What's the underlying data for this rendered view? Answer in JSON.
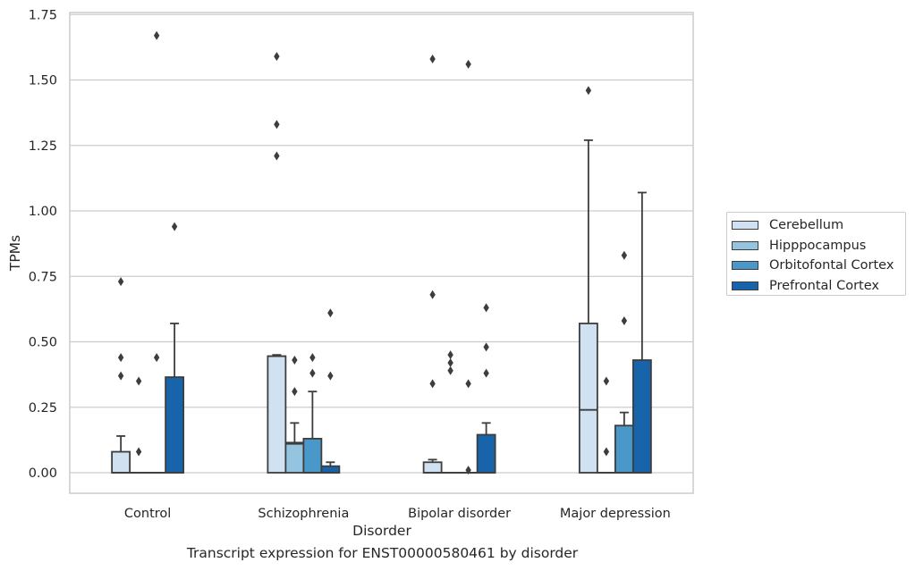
{
  "caption": "Transcript expression for ENST00000580461 by disorder",
  "chart_data": {
    "type": "box",
    "xlabel": "Disorder",
    "ylabel": "TPMs",
    "categories": [
      "Control",
      "Schizophrenia",
      "Bipolar disorder",
      "Major depression"
    ],
    "ylim": [
      -0.08,
      1.76
    ],
    "yticks": [
      0.0,
      0.25,
      0.5,
      0.75,
      1.0,
      1.25,
      1.5,
      1.75
    ],
    "ytick_labels": [
      "0.00",
      "0.25",
      "0.50",
      "0.75",
      "1.00",
      "1.25",
      "1.50",
      "1.75"
    ],
    "grid": true,
    "legend_position": "right",
    "series": [
      {
        "name": "Cerebellum",
        "color": "#d0e1f2",
        "boxes": [
          {
            "q1": 0.0,
            "median": 0.0,
            "q3": 0.08,
            "whisker_low": 0.0,
            "whisker_high": 0.14,
            "outliers": [
              0.73,
              0.44,
              0.37
            ]
          },
          {
            "q1": 0.0,
            "median": 0.445,
            "q3": 0.445,
            "whisker_low": 0.0,
            "whisker_high": 0.45,
            "outliers": [
              1.59,
              1.33,
              1.21
            ]
          },
          {
            "q1": 0.0,
            "median": 0.0,
            "q3": 0.04,
            "whisker_low": 0.0,
            "whisker_high": 0.05,
            "outliers": [
              1.58,
              0.68,
              0.34
            ]
          },
          {
            "q1": 0.0,
            "median": 0.24,
            "q3": 0.57,
            "whisker_low": 0.0,
            "whisker_high": 1.27,
            "outliers": [
              1.46
            ]
          }
        ]
      },
      {
        "name": "Hipppocampus",
        "color": "#94c4df",
        "boxes": [
          {
            "q1": 0.0,
            "median": 0.0,
            "q3": 0.0,
            "whisker_low": 0.0,
            "whisker_high": 0.0,
            "outliers": [
              0.35,
              0.08
            ]
          },
          {
            "q1": 0.0,
            "median": 0.11,
            "q3": 0.115,
            "whisker_low": 0.0,
            "whisker_high": 0.19,
            "outliers": [
              0.43,
              0.31
            ]
          },
          {
            "q1": 0.0,
            "median": 0.0,
            "q3": 0.0,
            "whisker_low": 0.0,
            "whisker_high": 0.0,
            "outliers": [
              0.45,
              0.42,
              0.39
            ]
          },
          {
            "q1": 0.0,
            "median": 0.0,
            "q3": 0.0,
            "whisker_low": 0.0,
            "whisker_high": 0.0,
            "outliers": [
              0.35,
              0.08
            ]
          }
        ]
      },
      {
        "name": "Orbitofontal Cortex",
        "color": "#4a98c9",
        "boxes": [
          {
            "q1": 0.0,
            "median": 0.0,
            "q3": 0.0,
            "whisker_low": 0.0,
            "whisker_high": 0.0,
            "outliers": [
              1.67,
              0.44
            ]
          },
          {
            "q1": 0.0,
            "median": 0.0,
            "q3": 0.13,
            "whisker_low": 0.0,
            "whisker_high": 0.31,
            "outliers": [
              0.44,
              0.38
            ]
          },
          {
            "q1": 0.0,
            "median": 0.0,
            "q3": 0.0,
            "whisker_low": 0.0,
            "whisker_high": 0.0,
            "outliers": [
              1.56,
              0.34,
              0.01
            ]
          },
          {
            "q1": 0.0,
            "median": 0.0,
            "q3": 0.18,
            "whisker_low": 0.0,
            "whisker_high": 0.23,
            "outliers": [
              0.83,
              0.58
            ]
          }
        ]
      },
      {
        "name": "Prefrontal Cortex",
        "color": "#1764ab",
        "boxes": [
          {
            "q1": 0.0,
            "median": 0.0,
            "q3": 0.365,
            "whisker_low": 0.0,
            "whisker_high": 0.57,
            "outliers": [
              0.94
            ]
          },
          {
            "q1": 0.0,
            "median": 0.0,
            "q3": 0.025,
            "whisker_low": 0.0,
            "whisker_high": 0.04,
            "outliers": [
              0.61,
              0.37
            ]
          },
          {
            "q1": 0.0,
            "median": 0.0,
            "q3": 0.145,
            "whisker_low": 0.0,
            "whisker_high": 0.19,
            "outliers": [
              0.63,
              0.48,
              0.38
            ]
          },
          {
            "q1": 0.0,
            "median": 0.0,
            "q3": 0.43,
            "whisker_low": 0.0,
            "whisker_high": 1.07,
            "outliers": []
          }
        ]
      }
    ]
  }
}
